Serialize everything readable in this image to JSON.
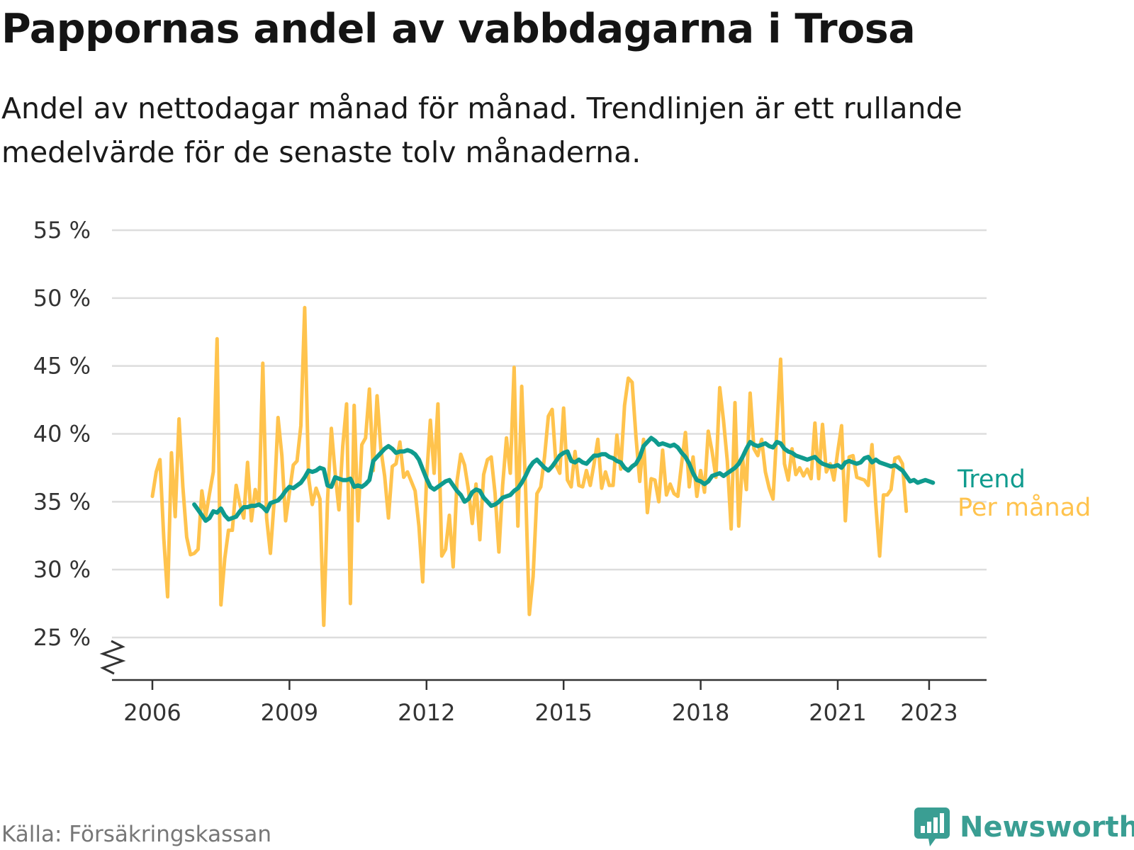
{
  "title": "Pappornas andel av vabbdagarna i Trosa",
  "subtitle": "Andel av nettodagar månad för månad. Trendlinjen är ett rullande medelvärde för de senaste tolv månaderna.",
  "source": "Källa: Försäkringskassan",
  "brand": "Newsworthy",
  "colors": {
    "trend": "#0f9b8e",
    "monthly": "#ffc34d",
    "grid": "#dddddd",
    "axis": "#333333",
    "brand": "#3a9e93"
  },
  "chart_data": {
    "type": "line",
    "ylim": [
      25,
      55
    ],
    "xlim": [
      2005.95,
      2023.9
    ],
    "yticks": [
      25,
      30,
      35,
      40,
      45,
      50,
      55
    ],
    "ytick_labels": [
      "25 %",
      "30 %",
      "35 %",
      "40 %",
      "45 %",
      "50 %",
      "55 %"
    ],
    "xticks": [
      2006,
      2009,
      2012,
      2015,
      2018,
      2021,
      2023
    ],
    "xtick_labels": [
      "2006",
      "2009",
      "2012",
      "2015",
      "2018",
      "2021",
      "2023"
    ],
    "axis_break": true,
    "grid": "horizontal",
    "series": [
      {
        "name": "Per månad",
        "x_start": 2006.0,
        "x_step_months": 1,
        "values": [
          35.4,
          37.2,
          38.1,
          32.3,
          28.0,
          38.6,
          33.9,
          41.1,
          36.1,
          32.4,
          31.1,
          31.2,
          31.5,
          35.8,
          33.9,
          35.6,
          37.2,
          47.0,
          27.4,
          30.8,
          32.9,
          32.9,
          36.2,
          34.8,
          33.8,
          37.9,
          33.6,
          35.9,
          34.8,
          45.2,
          33.8,
          31.2,
          35.1,
          41.2,
          38.4,
          33.6,
          35.7,
          37.7,
          38.0,
          40.6,
          49.3,
          36.8,
          34.8,
          36.0,
          35.2,
          25.9,
          35.1,
          40.4,
          37.1,
          34.4,
          39.1,
          42.2,
          27.5,
          42.1,
          33.6,
          39.2,
          39.7,
          43.3,
          37.3,
          42.8,
          38.9,
          36.9,
          33.8,
          37.6,
          37.8,
          39.4,
          36.8,
          37.2,
          36.5,
          35.8,
          33.2,
          29.1,
          36.7,
          41.0,
          37.1,
          42.2,
          31.0,
          31.5,
          34.0,
          30.2,
          36.5,
          38.5,
          37.7,
          35.9,
          33.4,
          36.3,
          32.2,
          37.0,
          38.1,
          38.3,
          35.6,
          31.3,
          36.2,
          39.7,
          37.1,
          44.9,
          33.2,
          43.5,
          36.1,
          26.7,
          29.5,
          35.6,
          36.1,
          38.3,
          41.3,
          41.8,
          37.7,
          37.1,
          41.9,
          36.6,
          36.1,
          38.7,
          36.2,
          36.1,
          37.3,
          36.2,
          37.8,
          39.6,
          36.0,
          37.2,
          36.2,
          36.2,
          39.9,
          37.4,
          42.1,
          44.1,
          43.8,
          39.8,
          36.5,
          39.6,
          34.2,
          36.7,
          36.6,
          35.0,
          38.8,
          35.5,
          36.3,
          35.6,
          35.4,
          37.8,
          40.1,
          36.1,
          38.3,
          35.4,
          37.3,
          35.7,
          40.2,
          38.7,
          36.8,
          43.4,
          41.0,
          38.0,
          33.0,
          42.3,
          33.2,
          38.2,
          35.9,
          43.0,
          38.9,
          38.4,
          39.6,
          37.2,
          36.0,
          35.2,
          40.2,
          45.5,
          37.8,
          36.6,
          38.9,
          37.0,
          37.5,
          36.9,
          37.4,
          36.7,
          40.8,
          36.7,
          40.7,
          37.2,
          37.8,
          36.6,
          38.7,
          40.6,
          33.6,
          38.3,
          38.4,
          36.8,
          36.7,
          36.6,
          36.2,
          39.2,
          34.8,
          31.0,
          35.5,
          35.5,
          35.9,
          38.2,
          38.3,
          37.8,
          34.3
        ]
      },
      {
        "name": "Trend",
        "x_start": 2006.917,
        "x_step_months": 1,
        "values": [
          34.8,
          34.4,
          34.0,
          33.6,
          33.8,
          34.3,
          34.2,
          34.5,
          34.0,
          33.7,
          33.8,
          33.9,
          34.3,
          34.6,
          34.6,
          34.7,
          34.7,
          34.8,
          34.6,
          34.3,
          34.9,
          35.0,
          35.1,
          35.4,
          35.8,
          36.1,
          36.0,
          36.2,
          36.4,
          36.8,
          37.3,
          37.2,
          37.3,
          37.5,
          37.4,
          36.2,
          36.1,
          36.8,
          36.7,
          36.6,
          36.6,
          36.7,
          36.1,
          36.2,
          36.1,
          36.3,
          36.6,
          38.0,
          38.3,
          38.6,
          38.9,
          39.1,
          38.9,
          38.6,
          38.7,
          38.7,
          38.8,
          38.7,
          38.5,
          38.1,
          37.4,
          36.7,
          36.1,
          35.9,
          36.1,
          36.3,
          36.5,
          36.6,
          36.2,
          35.8,
          35.5,
          35.0,
          35.2,
          35.7,
          35.9,
          35.8,
          35.3,
          35.0,
          34.7,
          34.8,
          35.0,
          35.3,
          35.4,
          35.5,
          35.8,
          36.0,
          36.4,
          36.9,
          37.5,
          37.9,
          38.1,
          37.8,
          37.5,
          37.3,
          37.6,
          38.0,
          38.4,
          38.6,
          38.7,
          38.0,
          37.9,
          38.1,
          37.9,
          37.8,
          38.1,
          38.4,
          38.4,
          38.5,
          38.5,
          38.3,
          38.2,
          38.0,
          37.9,
          37.5,
          37.3,
          37.6,
          37.8,
          38.3,
          39.1,
          39.4,
          39.7,
          39.5,
          39.2,
          39.3,
          39.2,
          39.1,
          39.2,
          39.0,
          38.6,
          38.3,
          37.8,
          37.1,
          36.6,
          36.5,
          36.3,
          36.5,
          36.9,
          37.0,
          37.1,
          36.9,
          37.1,
          37.3,
          37.5,
          37.8,
          38.3,
          38.9,
          39.4,
          39.2,
          39.1,
          39.2,
          39.3,
          39.1,
          39.0,
          39.4,
          39.3,
          38.9,
          38.7,
          38.6,
          38.4,
          38.3,
          38.2,
          38.1,
          38.2,
          38.3,
          38.0,
          37.8,
          37.7,
          37.6,
          37.6,
          37.7,
          37.5,
          37.9,
          38.0,
          37.9,
          37.8,
          37.9,
          38.2,
          38.3,
          37.9,
          38.1,
          37.9,
          37.8,
          37.7,
          37.6,
          37.7,
          37.5,
          37.3,
          36.9,
          36.5,
          36.6,
          36.4,
          36.5,
          36.6,
          36.5,
          36.4
        ]
      }
    ]
  }
}
